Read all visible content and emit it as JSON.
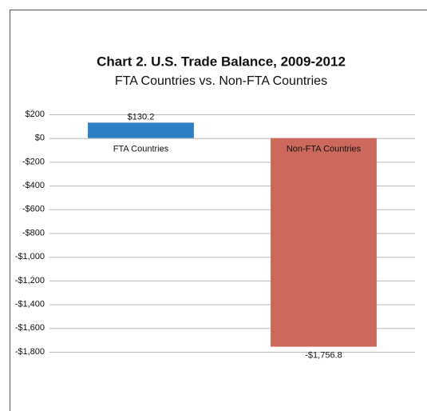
{
  "chart_data": {
    "type": "bar",
    "title": "Chart 2. U.S. Trade Balance, 2009-2012",
    "subtitle": "FTA Countries vs. Non-FTA Countries",
    "categories": [
      "FTA Countries",
      "Non-FTA Countries"
    ],
    "values": [
      130.2,
      -1756.8
    ],
    "value_labels": [
      "$130.2",
      "-$1,756.8"
    ],
    "colors": [
      "#2f7fc5",
      "#cc695c"
    ],
    "ylim": [
      -1800,
      200
    ],
    "yticks": [
      {
        "value": 200,
        "label": "$200"
      },
      {
        "value": 0,
        "label": "$0"
      },
      {
        "value": -200,
        "label": "-$200"
      },
      {
        "value": -400,
        "label": "-$400"
      },
      {
        "value": -600,
        "label": "-$600"
      },
      {
        "value": -800,
        "label": "-$800"
      },
      {
        "value": -1000,
        "label": "-$1,000"
      },
      {
        "value": -1200,
        "label": "-$1,200"
      },
      {
        "value": -1400,
        "label": "-$1,400"
      },
      {
        "value": -1600,
        "label": "-$1,600"
      },
      {
        "value": -1800,
        "label": "-$1,800"
      }
    ],
    "grid": true
  }
}
